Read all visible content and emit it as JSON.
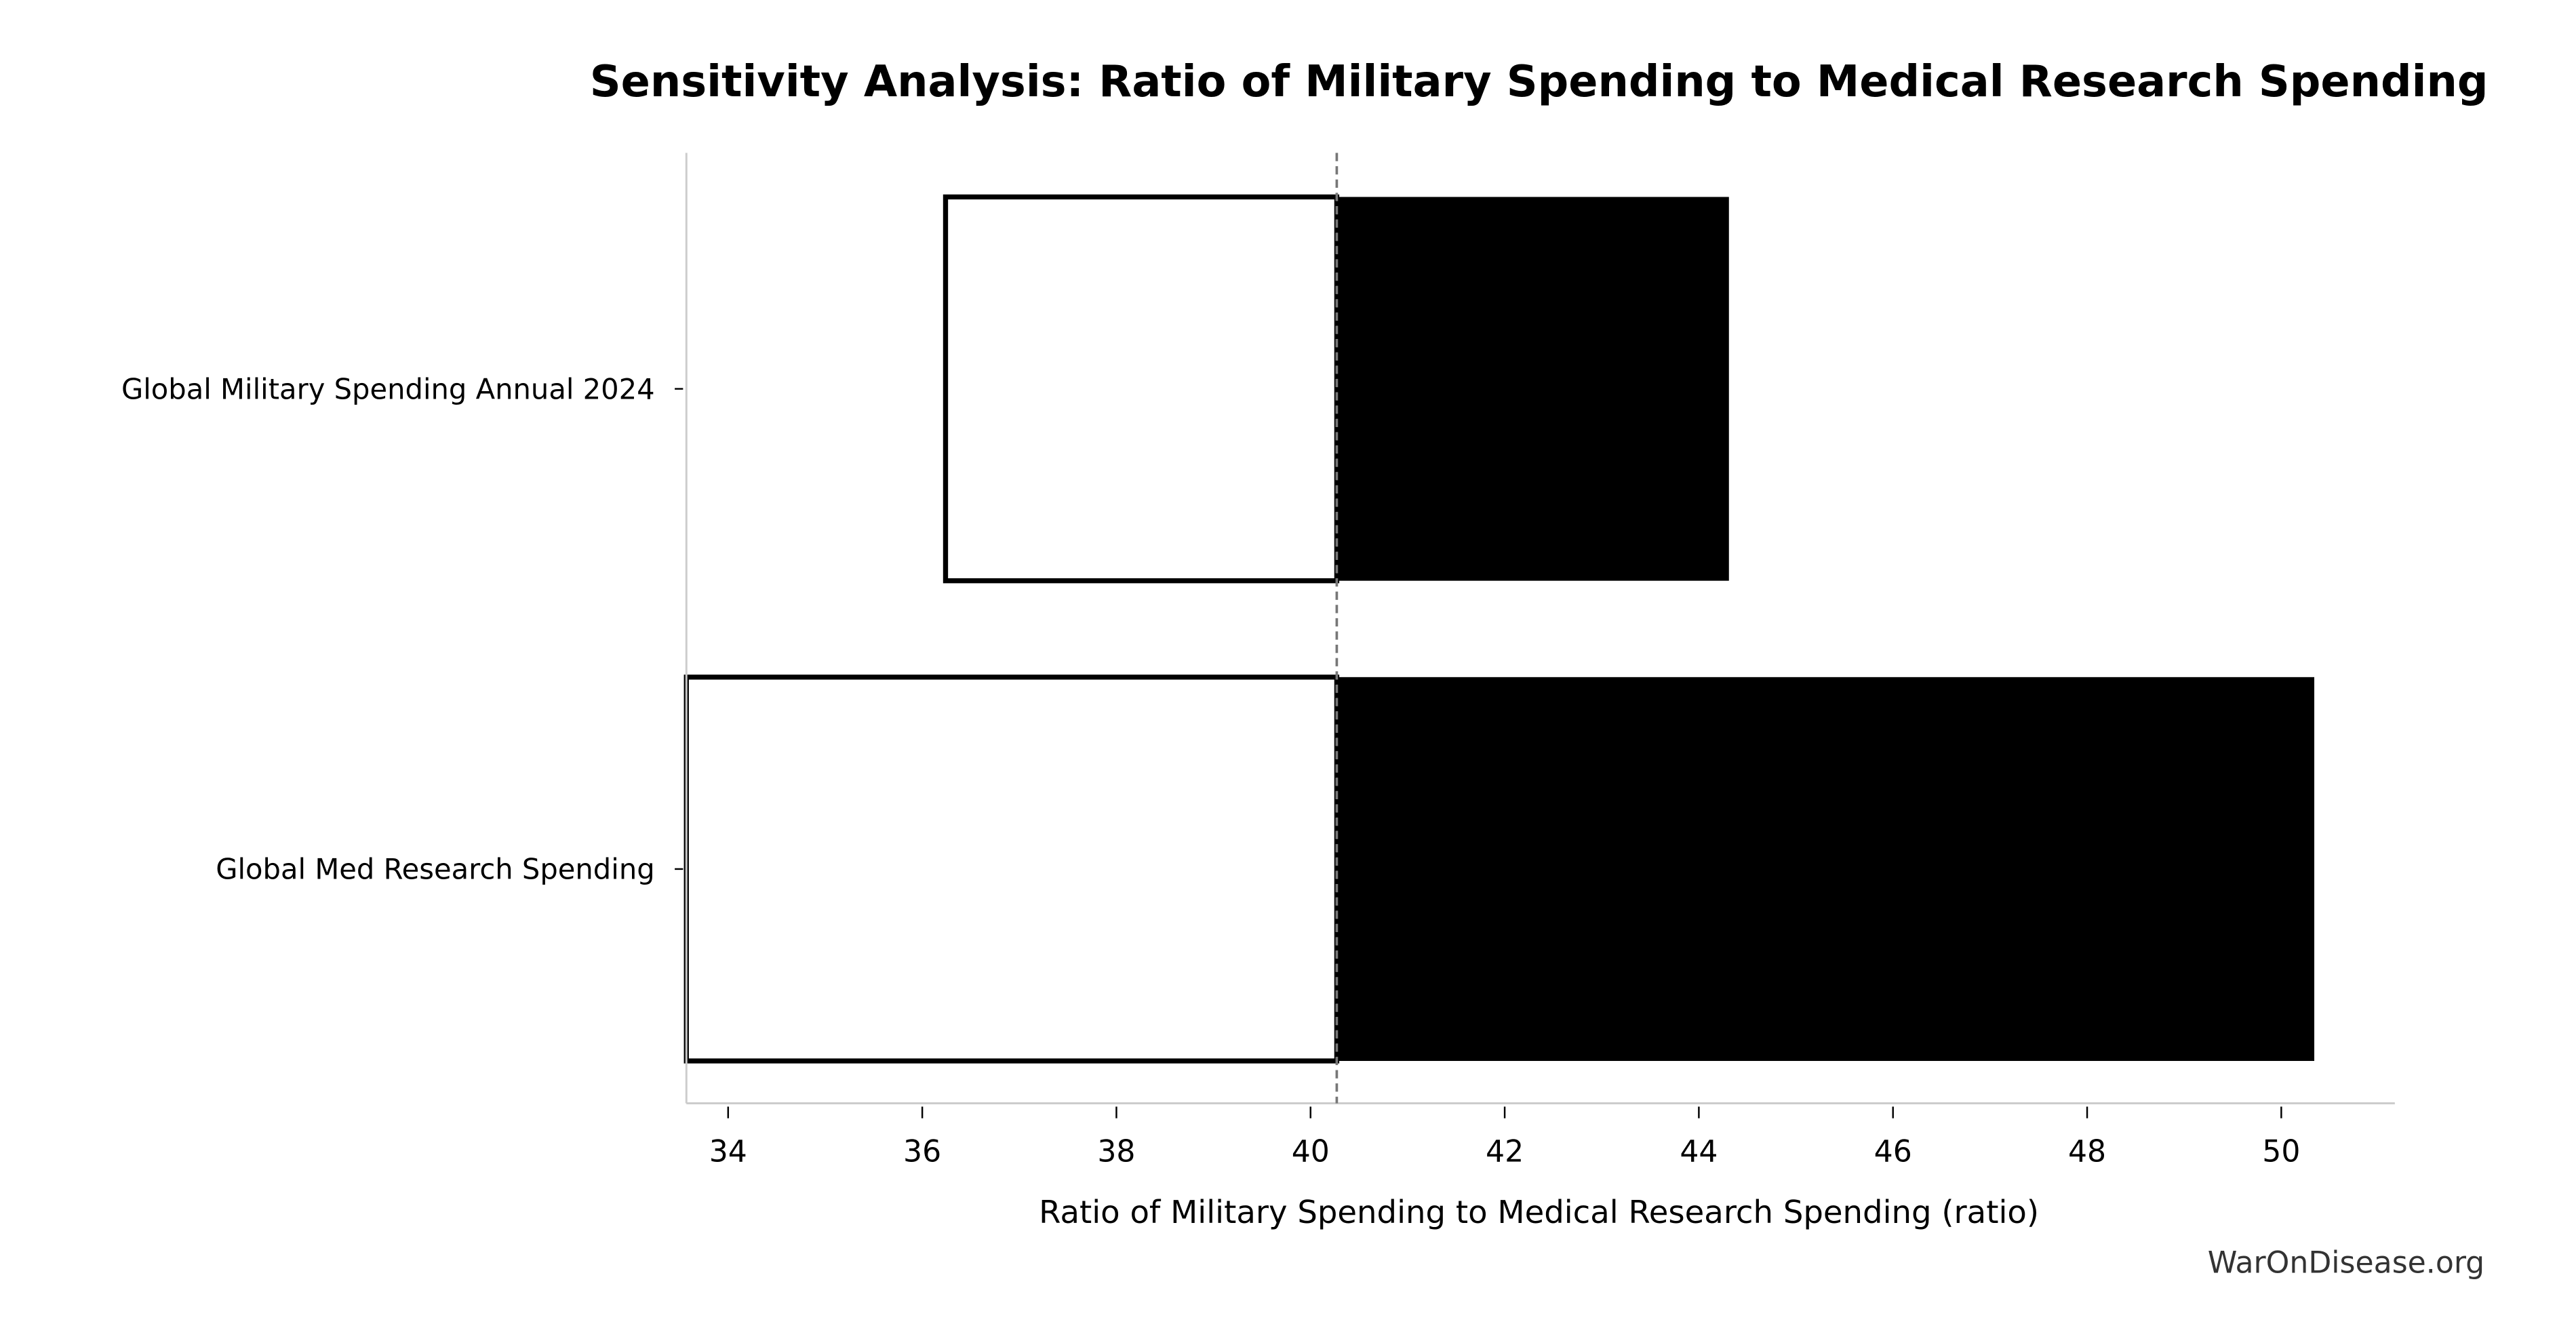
{
  "chart_data": {
    "type": "bar",
    "subtype": "tornado",
    "orientation": "horizontal",
    "title": "Sensitivity Analysis: Ratio of Military Spending to Medical Research Spending",
    "xlabel": "Ratio of Military Spending to Medical Research Spending (ratio)",
    "ylabel": "",
    "xlim": [
      33.57,
      51.17
    ],
    "xticks": [
      34,
      36,
      38,
      40,
      42,
      44,
      46,
      48,
      50
    ],
    "baseline": 40.27,
    "grid": false,
    "categories": [
      "Global Military Spending Annual 2024",
      "Global Med Research Spending"
    ],
    "series": [
      {
        "role": "low",
        "values": [
          36.24,
          33.57
        ]
      },
      {
        "role": "high",
        "values": [
          44.31,
          50.34
        ]
      }
    ],
    "colors": {
      "low_fill": "#ffffff",
      "low_edge": "#000000",
      "high_fill": "#000000",
      "baseline": "#777777",
      "axis": "#cccccc"
    }
  },
  "watermark": "WarOnDisease.org"
}
